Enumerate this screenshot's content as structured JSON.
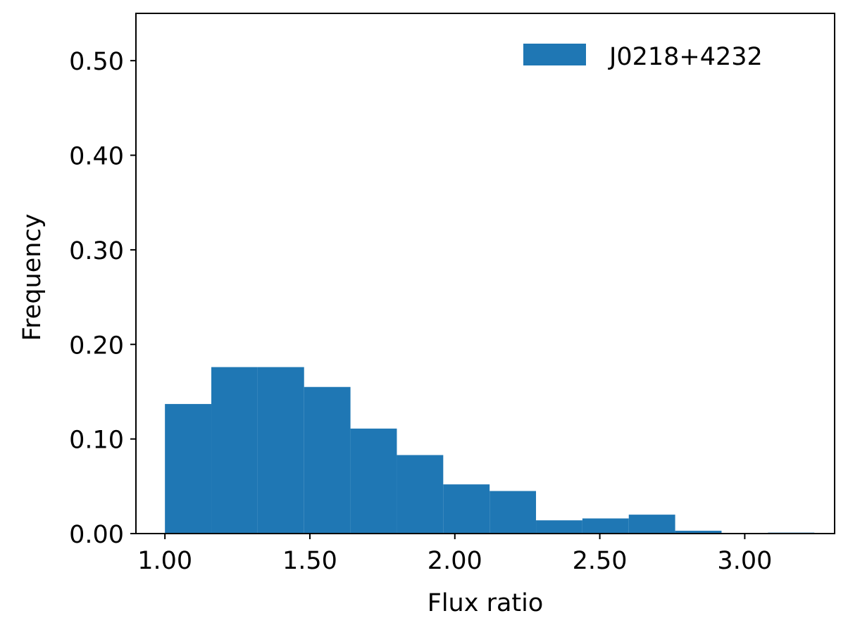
{
  "chart_data": {
    "type": "bar",
    "histogram": true,
    "bin_edges": [
      1.0,
      1.16,
      1.32,
      1.48,
      1.64,
      1.8,
      1.96,
      2.12,
      2.28,
      2.44,
      2.6,
      2.76,
      2.92,
      3.08,
      3.24
    ],
    "series": [
      {
        "name": "J0218+4232",
        "color": "#1f77b4",
        "values": [
          0.137,
          0.176,
          0.176,
          0.155,
          0.111,
          0.083,
          0.052,
          0.045,
          0.014,
          0.016,
          0.02,
          0.003,
          0.0,
          0.001
        ]
      }
    ],
    "xlabel": "Flux ratio",
    "ylabel": "Frequency",
    "xlim": [
      0.9,
      3.31
    ],
    "ylim": [
      0.0,
      0.55
    ],
    "xticks": [
      1.0,
      1.5,
      2.0,
      2.5,
      3.0
    ],
    "xtick_labels": [
      "1.00",
      "1.50",
      "2.00",
      "2.50",
      "3.00"
    ],
    "yticks": [
      0.0,
      0.1,
      0.2,
      0.3,
      0.4,
      0.5
    ],
    "ytick_labels": [
      "0.00",
      "0.10",
      "0.20",
      "0.30",
      "0.40",
      "0.50"
    ],
    "legend_position": "top-right",
    "grid": false
  }
}
